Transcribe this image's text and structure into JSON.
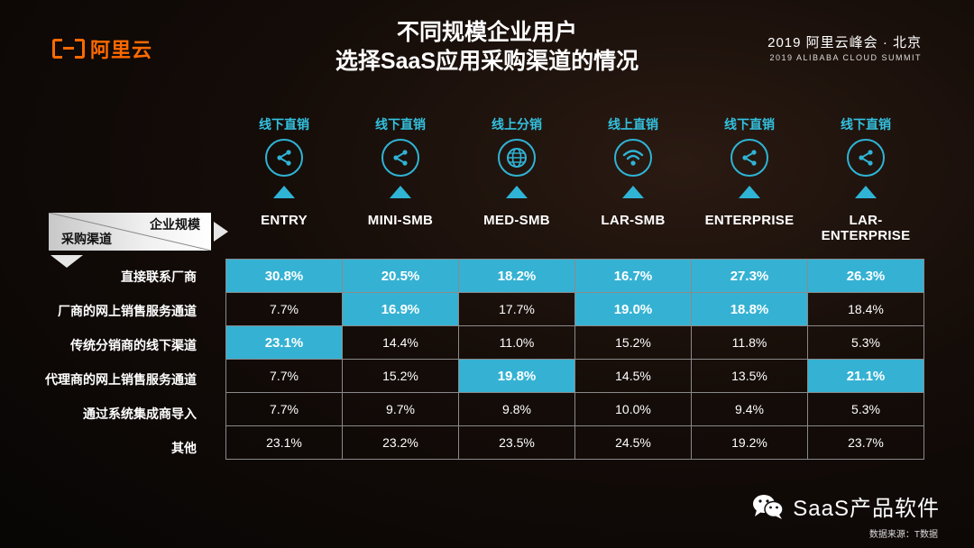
{
  "brand": {
    "logo_text": "阿里云",
    "logo_icon": "aliyun-logo-icon",
    "accent": "#ff6a00"
  },
  "title": {
    "line1": "不同规模企业用户",
    "line2": "选择SaaS应用采购渠道的情况"
  },
  "event": {
    "line1": "2019 阿里云峰会 · 北京",
    "line2": "2019 ALIBABA CLOUD SUMMIT"
  },
  "corner": {
    "top_right": "企业规模",
    "bottom_left": "采购渠道"
  },
  "colors": {
    "highlight": "#35b2d3",
    "icon": "#2fb4d6",
    "channel_text": "#33c1df",
    "grid_line": "#8a8a8a"
  },
  "chart_data": {
    "type": "table",
    "columns": [
      {
        "segment": "ENTRY",
        "top_channel": "线下直销",
        "icon": "share-icon"
      },
      {
        "segment": "MINI-SMB",
        "top_channel": "线下直销",
        "icon": "share-icon"
      },
      {
        "segment": "MED-SMB",
        "top_channel": "线上分销",
        "icon": "globe-icon"
      },
      {
        "segment": "LAR-SMB",
        "top_channel": "线上直销",
        "icon": "wifi-icon"
      },
      {
        "segment": "ENTERPRISE",
        "top_channel": "线下直销",
        "icon": "share-icon"
      },
      {
        "segment": "LAR-ENTERPRISE",
        "top_channel": "线下直销",
        "icon": "share-icon"
      }
    ],
    "rows": [
      {
        "label": "直接联系厂商",
        "values": [
          "30.8%",
          "20.5%",
          "18.2%",
          "16.7%",
          "27.3%",
          "26.3%"
        ],
        "highlight": [
          true,
          true,
          true,
          true,
          true,
          true
        ]
      },
      {
        "label": "厂商的网上销售服务通道",
        "values": [
          "7.7%",
          "16.9%",
          "17.7%",
          "19.0%",
          "18.8%",
          "18.4%"
        ],
        "highlight": [
          false,
          true,
          false,
          true,
          true,
          false
        ]
      },
      {
        "label": "传统分销商的线下渠道",
        "values": [
          "23.1%",
          "14.4%",
          "11.0%",
          "15.2%",
          "11.8%",
          "5.3%"
        ],
        "highlight": [
          true,
          false,
          false,
          false,
          false,
          false
        ]
      },
      {
        "label": "代理商的网上销售服务通道",
        "values": [
          "7.7%",
          "15.2%",
          "19.8%",
          "14.5%",
          "13.5%",
          "21.1%"
        ],
        "highlight": [
          false,
          false,
          true,
          false,
          false,
          true
        ]
      },
      {
        "label": "通过系统集成商导入",
        "values": [
          "7.7%",
          "9.7%",
          "9.8%",
          "10.0%",
          "9.4%",
          "5.3%"
        ],
        "highlight": [
          false,
          false,
          false,
          false,
          false,
          false
        ]
      },
      {
        "label": "其他",
        "values": [
          "23.1%",
          "23.2%",
          "23.5%",
          "24.5%",
          "19.2%",
          "23.7%"
        ],
        "highlight": [
          false,
          false,
          false,
          false,
          false,
          false
        ]
      }
    ]
  },
  "watermark": {
    "text": "SaaS产品软件",
    "icon": "wechat-icon"
  },
  "source": "数据来源：T数据"
}
